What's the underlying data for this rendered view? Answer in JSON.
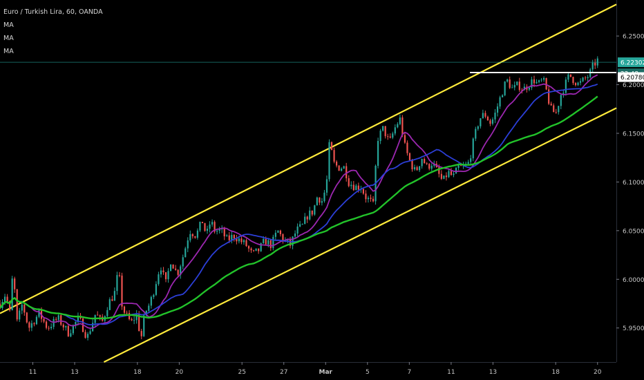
{
  "chart_data": {
    "type": "candlestick",
    "title": "Euro / Turkish Lira, 60, OANDA",
    "indicators": [
      "MA",
      "MA",
      "MA"
    ],
    "y_ticks": [
      "6.25000",
      "6.20000",
      "6.15000",
      "6.10000",
      "6.05000",
      "6.00000",
      "5.95000"
    ],
    "y_tick_values": [
      6.25,
      6.2,
      6.15,
      6.1,
      6.05,
      6.0,
      5.95
    ],
    "ylim": [
      5.915,
      6.287
    ],
    "x_ticks": [
      "11",
      "13",
      "18",
      "20",
      "25",
      "27",
      "Mar",
      "5",
      "7",
      "11",
      "13",
      "18",
      "20"
    ],
    "x_tick_days": [
      0,
      2,
      5,
      7,
      10,
      12,
      14,
      16,
      18,
      20,
      22,
      25,
      27
    ],
    "xlim": [
      -1.57,
      27.9
    ],
    "price_badge": {
      "label": "6.22302",
      "value": 6.22302,
      "color": "#26a69a"
    },
    "timer_badge": {
      "label": "22:48"
    },
    "level_badge": {
      "label": "6.20780",
      "value": 6.2078
    },
    "resistance_line": {
      "start_day": 20.9,
      "end_day": 27.2,
      "value": 6.2125,
      "color": "#ffffff"
    },
    "channel_upper": {
      "from": [
        -1.57,
        5.965
      ],
      "to": [
        27.9,
        6.2825
      ],
      "color": "#ffeb3b"
    },
    "channel_lower": {
      "from": [
        3.4,
        5.915
      ],
      "to": [
        27.9,
        6.176
      ],
      "color": "#ffeb3b"
    },
    "colors": {
      "up": "#26a69a",
      "down": "#ef5350",
      "ma_fast": "#9c27b0",
      "ma_mid": "#2c3fd8",
      "ma_slow": "#22c32a"
    },
    "price_path": [
      [
        -1.57,
        5.975
      ],
      [
        -1.3,
        5.985
      ],
      [
        -1.1,
        5.965
      ],
      [
        -0.95,
        6.01
      ],
      [
        -0.75,
        5.955
      ],
      [
        -0.5,
        5.975
      ],
      [
        -0.2,
        5.95
      ],
      [
        0.3,
        5.965
      ],
      [
        0.7,
        5.95
      ],
      [
        1.2,
        5.96
      ],
      [
        1.7,
        5.945
      ],
      [
        2.2,
        5.96
      ],
      [
        2.6,
        5.94
      ],
      [
        3,
        5.965
      ],
      [
        3.3,
        5.955
      ],
      [
        3.6,
        5.975
      ],
      [
        3.9,
        5.985
      ],
      [
        4.1,
        6.01
      ],
      [
        4.25,
        5.975
      ],
      [
        4.4,
        5.965
      ],
      [
        4.7,
        5.955
      ],
      [
        5,
        5.965
      ],
      [
        5.15,
        5.935
      ],
      [
        5.35,
        5.965
      ],
      [
        5.6,
        5.975
      ],
      [
        5.8,
        5.99
      ],
      [
        6.1,
        6.015
      ],
      [
        6.35,
        5.995
      ],
      [
        6.6,
        6.02
      ],
      [
        6.9,
        6.005
      ],
      [
        7.2,
        6.025
      ],
      [
        7.5,
        6.05
      ],
      [
        7.8,
        6.045
      ],
      [
        8.1,
        6.06
      ],
      [
        8.3,
        6.045
      ],
      [
        8.5,
        6.06
      ],
      [
        8.7,
        6.05
      ],
      [
        9,
        6.05
      ],
      [
        9.3,
        6.04
      ],
      [
        9.6,
        6.045
      ],
      [
        9.9,
        6.04
      ],
      [
        10.2,
        6.035
      ],
      [
        10.5,
        6.025
      ],
      [
        10.8,
        6.03
      ],
      [
        11.1,
        6.04
      ],
      [
        11.4,
        6.035
      ],
      [
        11.7,
        6.05
      ],
      [
        12,
        6.04
      ],
      [
        12.3,
        6.035
      ],
      [
        12.6,
        6.05
      ],
      [
        12.9,
        6.055
      ],
      [
        13.1,
        6.065
      ],
      [
        13.4,
        6.07
      ],
      [
        13.6,
        6.085
      ],
      [
        13.85,
        6.08
      ],
      [
        14.05,
        6.1
      ],
      [
        14.2,
        6.145
      ],
      [
        14.35,
        6.12
      ],
      [
        14.6,
        6.115
      ],
      [
        14.9,
        6.115
      ],
      [
        15.1,
        6.1
      ],
      [
        15.4,
        6.095
      ],
      [
        15.7,
        6.095
      ],
      [
        15.9,
        6.085
      ],
      [
        16.15,
        6.08
      ],
      [
        16.3,
        6.075
      ],
      [
        16.4,
        6.12
      ],
      [
        16.5,
        6.145
      ],
      [
        16.75,
        6.155
      ],
      [
        17.05,
        6.14
      ],
      [
        17.3,
        6.155
      ],
      [
        17.55,
        6.165
      ],
      [
        17.8,
        6.135
      ],
      [
        18.05,
        6.12
      ],
      [
        18.3,
        6.11
      ],
      [
        18.6,
        6.125
      ],
      [
        18.85,
        6.115
      ],
      [
        19.1,
        6.12
      ],
      [
        19.35,
        6.11
      ],
      [
        19.6,
        6.1
      ],
      [
        19.85,
        6.11
      ],
      [
        20.1,
        6.105
      ],
      [
        20.35,
        6.115
      ],
      [
        20.6,
        6.115
      ],
      [
        20.85,
        6.12
      ],
      [
        21.1,
        6.145
      ],
      [
        21.35,
        6.165
      ],
      [
        21.6,
        6.17
      ],
      [
        21.9,
        6.16
      ],
      [
        22.1,
        6.17
      ],
      [
        22.4,
        6.19
      ],
      [
        22.65,
        6.205
      ],
      [
        22.95,
        6.195
      ],
      [
        23.2,
        6.2
      ],
      [
        23.45,
        6.195
      ],
      [
        23.7,
        6.2
      ],
      [
        23.95,
        6.205
      ],
      [
        24.15,
        6.2
      ],
      [
        24.4,
        6.205
      ],
      [
        24.6,
        6.19
      ],
      [
        24.75,
        6.175
      ],
      [
        25,
        6.17
      ],
      [
        25.25,
        6.19
      ],
      [
        25.45,
        6.2
      ],
      [
        25.65,
        6.21
      ],
      [
        25.85,
        6.205
      ],
      [
        26.1,
        6.2
      ],
      [
        26.35,
        6.205
      ],
      [
        26.6,
        6.21
      ],
      [
        26.8,
        6.22
      ],
      [
        27.0,
        6.225
      ]
    ]
  }
}
